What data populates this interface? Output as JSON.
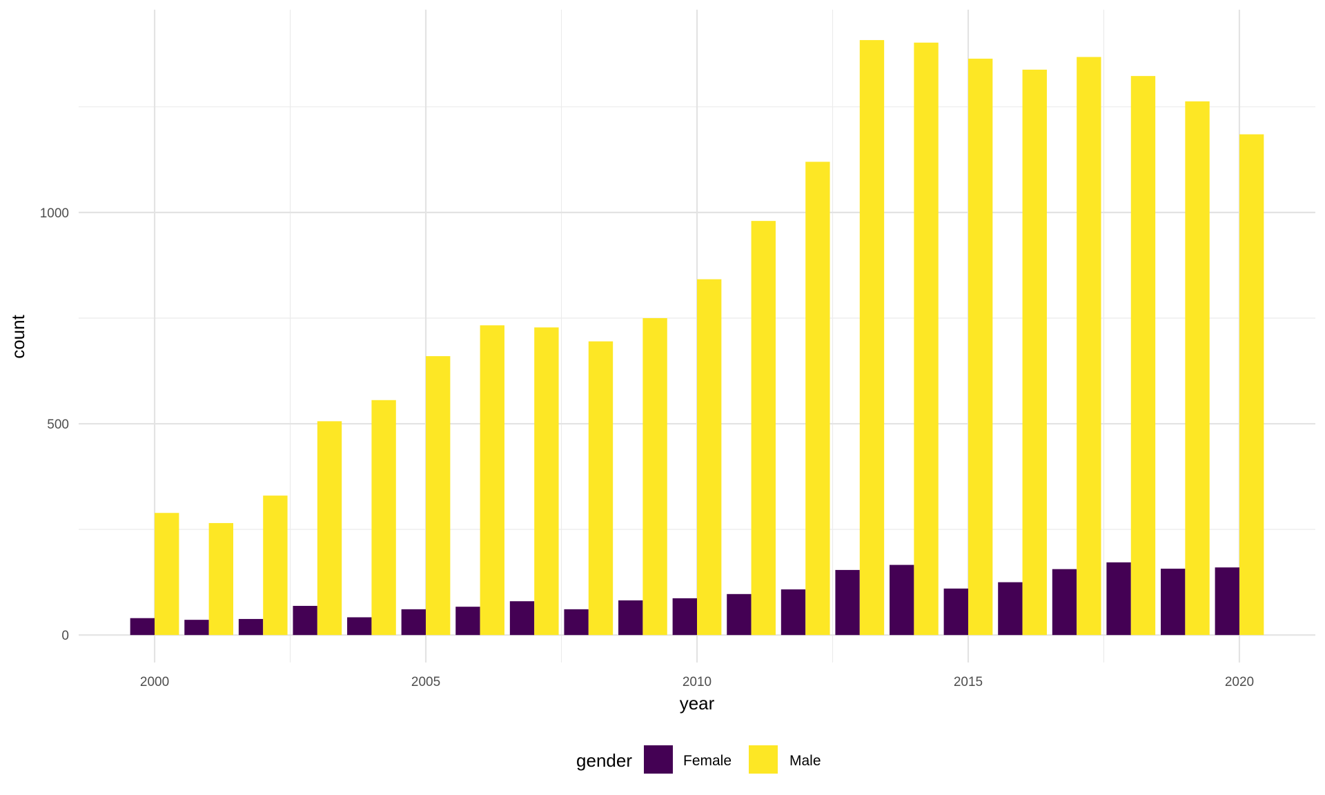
{
  "chart_data": {
    "type": "bar",
    "xlabel": "year",
    "ylabel": "count",
    "ylim": [
      -65,
      1480
    ],
    "xlim": [
      1998.6,
      2021.4
    ],
    "x_ticks": [
      2000,
      2005,
      2010,
      2015,
      2020
    ],
    "x_tick_labels": [
      "2000",
      "2005",
      "2010",
      "2015",
      "2020"
    ],
    "y_ticks": [
      0,
      500,
      1000
    ],
    "y_tick_labels": [
      "0",
      "500",
      "1000"
    ],
    "grid": true,
    "legend": {
      "title": "gender",
      "position": "bottom"
    },
    "years": [
      2000,
      2001,
      2002,
      2003,
      2004,
      2005,
      2006,
      2007,
      2008,
      2009,
      2010,
      2011,
      2012,
      2013,
      2014,
      2015,
      2016,
      2017,
      2018,
      2019,
      2020
    ],
    "series": [
      {
        "name": "Female",
        "color": "#440154",
        "values": [
          40,
          36,
          38,
          69,
          42,
          61,
          67,
          80,
          61,
          82,
          87,
          97,
          108,
          154,
          166,
          110,
          125,
          156,
          172,
          157,
          160
        ]
      },
      {
        "name": "Male",
        "color": "#FDE725",
        "values": [
          289,
          265,
          330,
          506,
          556,
          660,
          733,
          728,
          695,
          750,
          842,
          980,
          1120,
          1408,
          1402,
          1364,
          1338,
          1368,
          1323,
          1263,
          1185
        ]
      }
    ]
  }
}
